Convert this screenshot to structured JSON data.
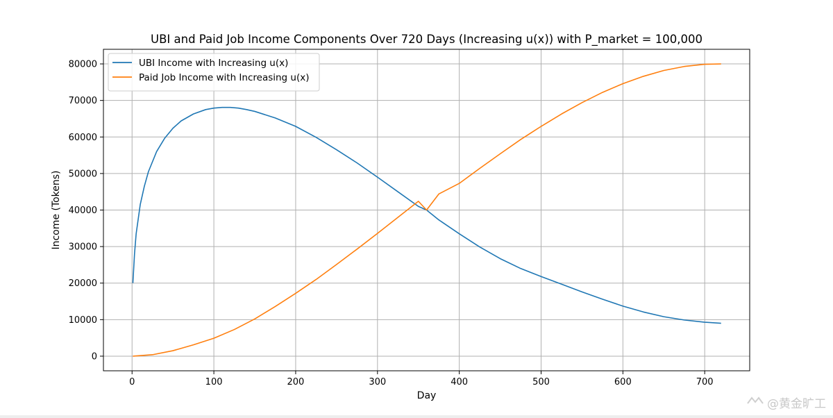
{
  "chart_data": {
    "type": "line",
    "title": "UBI and Paid Job Income Components Over 720 Days (Increasing u(x)) with P_market = 100,000",
    "xlabel": "Day",
    "ylabel": "Income (Tokens)",
    "xlim": [
      -35,
      755
    ],
    "ylim": [
      -4000,
      84000
    ],
    "xticks": [
      0,
      100,
      200,
      300,
      400,
      500,
      600,
      700
    ],
    "yticks": [
      0,
      10000,
      20000,
      30000,
      40000,
      50000,
      60000,
      70000,
      80000
    ],
    "grid": true,
    "legend_position": "upper-left",
    "series": [
      {
        "name": "UBI Income with Increasing u(x)",
        "color": "#1f77b4",
        "x": [
          1,
          3,
          5,
          10,
          15,
          20,
          30,
          40,
          50,
          60,
          75,
          90,
          100,
          110,
          120,
          130,
          140,
          150,
          175,
          200,
          225,
          250,
          275,
          300,
          325,
          350,
          360,
          375,
          400,
          425,
          450,
          475,
          500,
          525,
          550,
          575,
          600,
          625,
          650,
          675,
          700,
          720
        ],
        "y": [
          20000,
          28000,
          33500,
          41500,
          46500,
          50500,
          56000,
          59700,
          62400,
          64400,
          66300,
          67500,
          67900,
          68100,
          68100,
          67900,
          67500,
          67000,
          65200,
          62900,
          59900,
          56500,
          52900,
          49000,
          45000,
          41000,
          40000,
          37300,
          33500,
          29900,
          26700,
          24000,
          21800,
          19700,
          17600,
          15600,
          13700,
          12100,
          10800,
          9900,
          9300,
          9000
        ]
      },
      {
        "name": "Paid Job Income with Increasing u(x)",
        "color": "#ff7f0e",
        "x": [
          1,
          25,
          50,
          75,
          100,
          125,
          150,
          175,
          200,
          225,
          250,
          275,
          300,
          325,
          350,
          360,
          375,
          400,
          425,
          450,
          475,
          500,
          525,
          550,
          575,
          600,
          625,
          650,
          675,
          700,
          720
        ],
        "y": [
          0,
          400,
          1500,
          3100,
          4900,
          7300,
          10200,
          13600,
          17200,
          21000,
          25100,
          29300,
          33600,
          38000,
          42400,
          40000,
          44400,
          47300,
          51400,
          55400,
          59300,
          62900,
          66300,
          69400,
          72200,
          74600,
          76600,
          78200,
          79300,
          79900,
          80000
        ]
      }
    ]
  },
  "watermark": {
    "text": "@黄金旷工"
  }
}
